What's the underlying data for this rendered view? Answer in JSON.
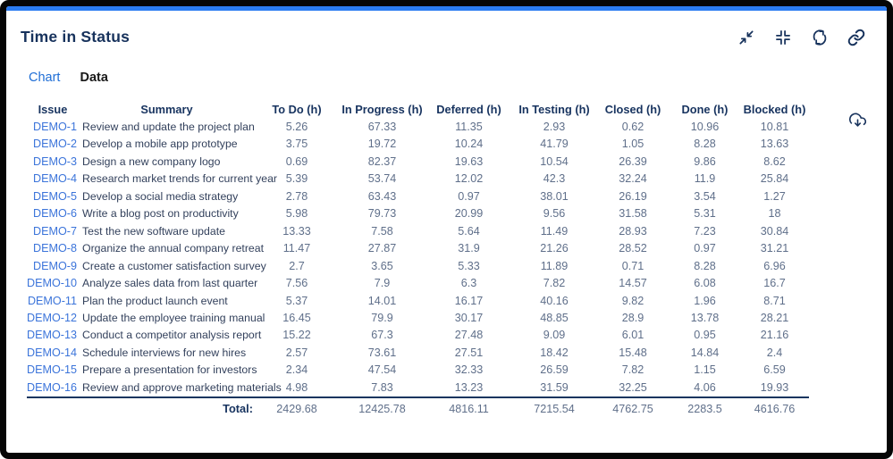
{
  "panel": {
    "title": "Time in Status",
    "tabs": [
      {
        "label": "Chart",
        "active": false
      },
      {
        "label": "Data",
        "active": true
      }
    ],
    "toolbar_icons": [
      "collapse-icon",
      "compress-icon",
      "refresh-icon",
      "link-icon"
    ],
    "export_icon": "cloud-download-icon",
    "colors": {
      "accent": "#2b7cf2",
      "title": "#17325c",
      "tab_link": "#1f6ed6",
      "issue_link": "#3b74da",
      "header_text": "#17335f",
      "value_text": "#5f6f8a",
      "frame": "#060606"
    }
  },
  "table": {
    "columns": [
      "Issue",
      "Summary",
      "To Do (h)",
      "In Progress (h)",
      "Deferred (h)",
      "In Testing (h)",
      "Closed (h)",
      "Done (h)",
      "Blocked (h)"
    ],
    "rows": [
      {
        "issue": "DEMO-1",
        "summary": "Review and update the project plan",
        "values": [
          "5.26",
          "67.33",
          "11.35",
          "2.93",
          "0.62",
          "10.96",
          "10.81"
        ]
      },
      {
        "issue": "DEMO-2",
        "summary": "Develop a mobile app prototype",
        "values": [
          "3.75",
          "19.72",
          "10.24",
          "41.79",
          "1.05",
          "8.28",
          "13.63"
        ]
      },
      {
        "issue": "DEMO-3",
        "summary": "Design a new company logo",
        "values": [
          "0.69",
          "82.37",
          "19.63",
          "10.54",
          "26.39",
          "9.86",
          "8.62"
        ]
      },
      {
        "issue": "DEMO-4",
        "summary": "Research market trends for current year",
        "values": [
          "5.39",
          "53.74",
          "12.02",
          "42.3",
          "32.24",
          "11.9",
          "25.84"
        ]
      },
      {
        "issue": "DEMO-5",
        "summary": "Develop a social media strategy",
        "values": [
          "2.78",
          "63.43",
          "0.97",
          "38.01",
          "26.19",
          "3.54",
          "1.27"
        ]
      },
      {
        "issue": "DEMO-6",
        "summary": "Write a blog post on productivity",
        "values": [
          "5.98",
          "79.73",
          "20.99",
          "9.56",
          "31.58",
          "5.31",
          "18"
        ]
      },
      {
        "issue": "DEMO-7",
        "summary": "Test the new software update",
        "values": [
          "13.33",
          "7.58",
          "5.64",
          "11.49",
          "28.93",
          "7.23",
          "30.84"
        ]
      },
      {
        "issue": "DEMO-8",
        "summary": "Organize the annual company retreat",
        "values": [
          "11.47",
          "27.87",
          "31.9",
          "21.26",
          "28.52",
          "0.97",
          "31.21"
        ]
      },
      {
        "issue": "DEMO-9",
        "summary": "Create a customer satisfaction survey",
        "values": [
          "2.7",
          "3.65",
          "5.33",
          "11.89",
          "0.71",
          "8.28",
          "6.96"
        ]
      },
      {
        "issue": "DEMO-10",
        "summary": "Analyze sales data from last quarter",
        "values": [
          "7.56",
          "7.9",
          "6.3",
          "7.82",
          "14.57",
          "6.08",
          "16.7"
        ]
      },
      {
        "issue": "DEMO-11",
        "summary": "Plan the product launch event",
        "values": [
          "5.37",
          "14.01",
          "16.17",
          "40.16",
          "9.82",
          "1.96",
          "8.71"
        ]
      },
      {
        "issue": "DEMO-12",
        "summary": "Update the employee training manual",
        "values": [
          "16.45",
          "79.9",
          "30.17",
          "48.85",
          "28.9",
          "13.78",
          "28.21"
        ]
      },
      {
        "issue": "DEMO-13",
        "summary": "Conduct a competitor analysis report",
        "values": [
          "15.22",
          "67.3",
          "27.48",
          "9.09",
          "6.01",
          "0.95",
          "21.16"
        ]
      },
      {
        "issue": "DEMO-14",
        "summary": "Schedule interviews for new hires",
        "values": [
          "2.57",
          "73.61",
          "27.51",
          "18.42",
          "15.48",
          "14.84",
          "2.4"
        ]
      },
      {
        "issue": "DEMO-15",
        "summary": "Prepare a presentation for investors",
        "values": [
          "2.34",
          "47.54",
          "32.33",
          "26.59",
          "7.82",
          "1.15",
          "6.59"
        ]
      },
      {
        "issue": "DEMO-16",
        "summary": "Review and approve marketing materials",
        "values": [
          "4.98",
          "7.83",
          "13.23",
          "31.59",
          "32.25",
          "4.06",
          "19.93"
        ]
      }
    ],
    "total_label": "Total:",
    "totals": [
      "2429.68",
      "12425.78",
      "4816.11",
      "7215.54",
      "4762.75",
      "2283.5",
      "4616.76"
    ]
  }
}
